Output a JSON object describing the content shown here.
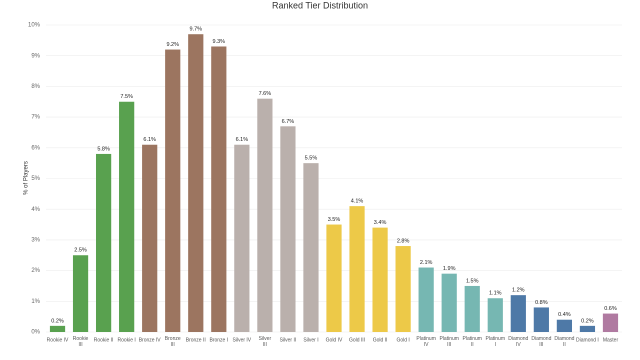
{
  "chart_data": {
    "type": "bar",
    "title": "Ranked Tier Distribution",
    "y_label": "% of Players",
    "categories": [
      "Rookie IV",
      "Rookie III",
      "Rookie II",
      "Rookie I",
      "Bronze IV",
      "Bronze III",
      "Bronze II",
      "Bronze I",
      "Silver IV",
      "Silver III",
      "Silver II",
      "Silver I",
      "Gold IV",
      "Gold III",
      "Gold II",
      "Gold I",
      "Platinum IV",
      "Platinum III",
      "Platinum II",
      "Platinum I",
      "Diamond IV",
      "Diamond III",
      "Diamond II",
      "Diamond I",
      "Master"
    ],
    "values": [
      0.2,
      2.5,
      5.8,
      7.5,
      6.1,
      9.2,
      9.7,
      9.3,
      6.1,
      7.6,
      6.7,
      5.5,
      3.5,
      4.1,
      3.4,
      2.8,
      2.1,
      1.9,
      1.5,
      1.1,
      1.2,
      0.8,
      0.4,
      0.2,
      0.6
    ],
    "value_labels": [
      "0.2%",
      "2.5%",
      "5.8%",
      "7.5%",
      "6.1%",
      "9.2%",
      "9.7%",
      "9.3%",
      "6.1%",
      "7.6%",
      "6.7%",
      "5.5%",
      "3.5%",
      "4.1%",
      "3.4%",
      "2.8%",
      "2.1%",
      "1.9%",
      "1.5%",
      "1.1%",
      "1.2%",
      "0.8%",
      "0.4%",
      "0.2%",
      "0.6%"
    ],
    "colors": [
      "#59a14f",
      "#59a14f",
      "#59a14f",
      "#59a14f",
      "#9c7560",
      "#9c7560",
      "#9c7560",
      "#9c7560",
      "#bab0ac",
      "#bab0ac",
      "#bab0ac",
      "#bab0ac",
      "#edc948",
      "#edc948",
      "#edc948",
      "#edc948",
      "#76b7b2",
      "#76b7b2",
      "#76b7b2",
      "#76b7b2",
      "#4e79a7",
      "#4e79a7",
      "#4e79a7",
      "#4e79a7",
      "#b07aa1"
    ],
    "ylim": [
      0,
      10
    ],
    "yticks": [
      {
        "value": 0,
        "label": "0%"
      },
      {
        "value": 1,
        "label": "1%"
      },
      {
        "value": 2,
        "label": "2%"
      },
      {
        "value": 3,
        "label": "3%"
      },
      {
        "value": 4,
        "label": "4%"
      },
      {
        "value": 5,
        "label": "5%"
      },
      {
        "value": 6,
        "label": "6%"
      },
      {
        "value": 7,
        "label": "7%"
      },
      {
        "value": 8,
        "label": "8%"
      },
      {
        "value": 9,
        "label": "9%"
      },
      {
        "value": 10,
        "label": "10%"
      }
    ],
    "grid": true
  }
}
